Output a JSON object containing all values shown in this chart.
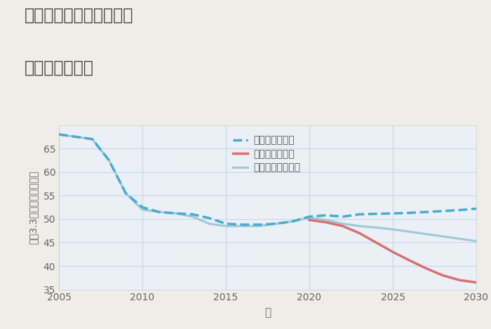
{
  "title_line1": "奈良県奈良市二名平野の",
  "title_line2": "土地の価格推移",
  "xlabel": "年",
  "ylabel": "坪（3.3㎡）単価（万円）",
  "background_color": "#f0ede8",
  "plot_background_color": "#eaf0f5",
  "grid_color": "#c5d8e8",
  "xlim": [
    2005,
    2030
  ],
  "ylim": [
    35,
    70
  ],
  "yticks": [
    35,
    40,
    45,
    50,
    55,
    60,
    65
  ],
  "xticks": [
    2005,
    2010,
    2015,
    2020,
    2025,
    2030
  ],
  "good_scenario": {
    "x": [
      2005,
      2006,
      2007,
      2008,
      2009,
      2010,
      2011,
      2012,
      2013,
      2014,
      2015,
      2016,
      2017,
      2018,
      2019,
      2020,
      2021,
      2022,
      2023,
      2024,
      2025,
      2026,
      2027,
      2028,
      2029,
      2030
    ],
    "y": [
      68.0,
      67.5,
      67.0,
      62.5,
      55.5,
      52.5,
      51.5,
      51.2,
      51.0,
      50.2,
      49.0,
      48.8,
      48.8,
      49.0,
      49.5,
      50.5,
      50.8,
      50.5,
      51.0,
      51.1,
      51.2,
      51.3,
      51.5,
      51.7,
      51.9,
      52.2
    ],
    "color": "#4aabcf",
    "label": "グッドシナリオ",
    "linewidth": 2.5,
    "linestyle": "--"
  },
  "bad_scenario": {
    "x": [
      2020,
      2021,
      2022,
      2023,
      2024,
      2025,
      2026,
      2027,
      2028,
      2029,
      2030
    ],
    "y": [
      49.8,
      49.3,
      48.5,
      47.0,
      45.0,
      43.0,
      41.2,
      39.5,
      38.0,
      37.0,
      36.5
    ],
    "color": "#d97070",
    "label": "バッドシナリオ",
    "linewidth": 2.5,
    "linestyle": "-"
  },
  "normal_scenario": {
    "x": [
      2005,
      2006,
      2007,
      2008,
      2009,
      2010,
      2011,
      2012,
      2013,
      2014,
      2015,
      2016,
      2017,
      2018,
      2019,
      2020,
      2021,
      2022,
      2023,
      2024,
      2025,
      2026,
      2027,
      2028,
      2029,
      2030
    ],
    "y": [
      68.0,
      67.5,
      67.0,
      62.5,
      55.5,
      52.0,
      51.5,
      51.2,
      50.5,
      49.0,
      48.5,
      48.5,
      48.5,
      49.0,
      49.5,
      50.3,
      49.8,
      49.0,
      48.5,
      48.2,
      47.8,
      47.3,
      46.8,
      46.3,
      45.8,
      45.3
    ],
    "color": "#a0c8d8",
    "label": "ノーマルシナリオ",
    "linewidth": 2.2,
    "linestyle": "-"
  },
  "legend_labels": [
    "グッドシナリオ",
    "バッドシナリオ",
    "ノーマルシナリオ"
  ],
  "legend_colors": [
    "#4aabcf",
    "#d97070",
    "#a0c8d8"
  ],
  "legend_linestyles": [
    "--",
    "-",
    "-"
  ]
}
